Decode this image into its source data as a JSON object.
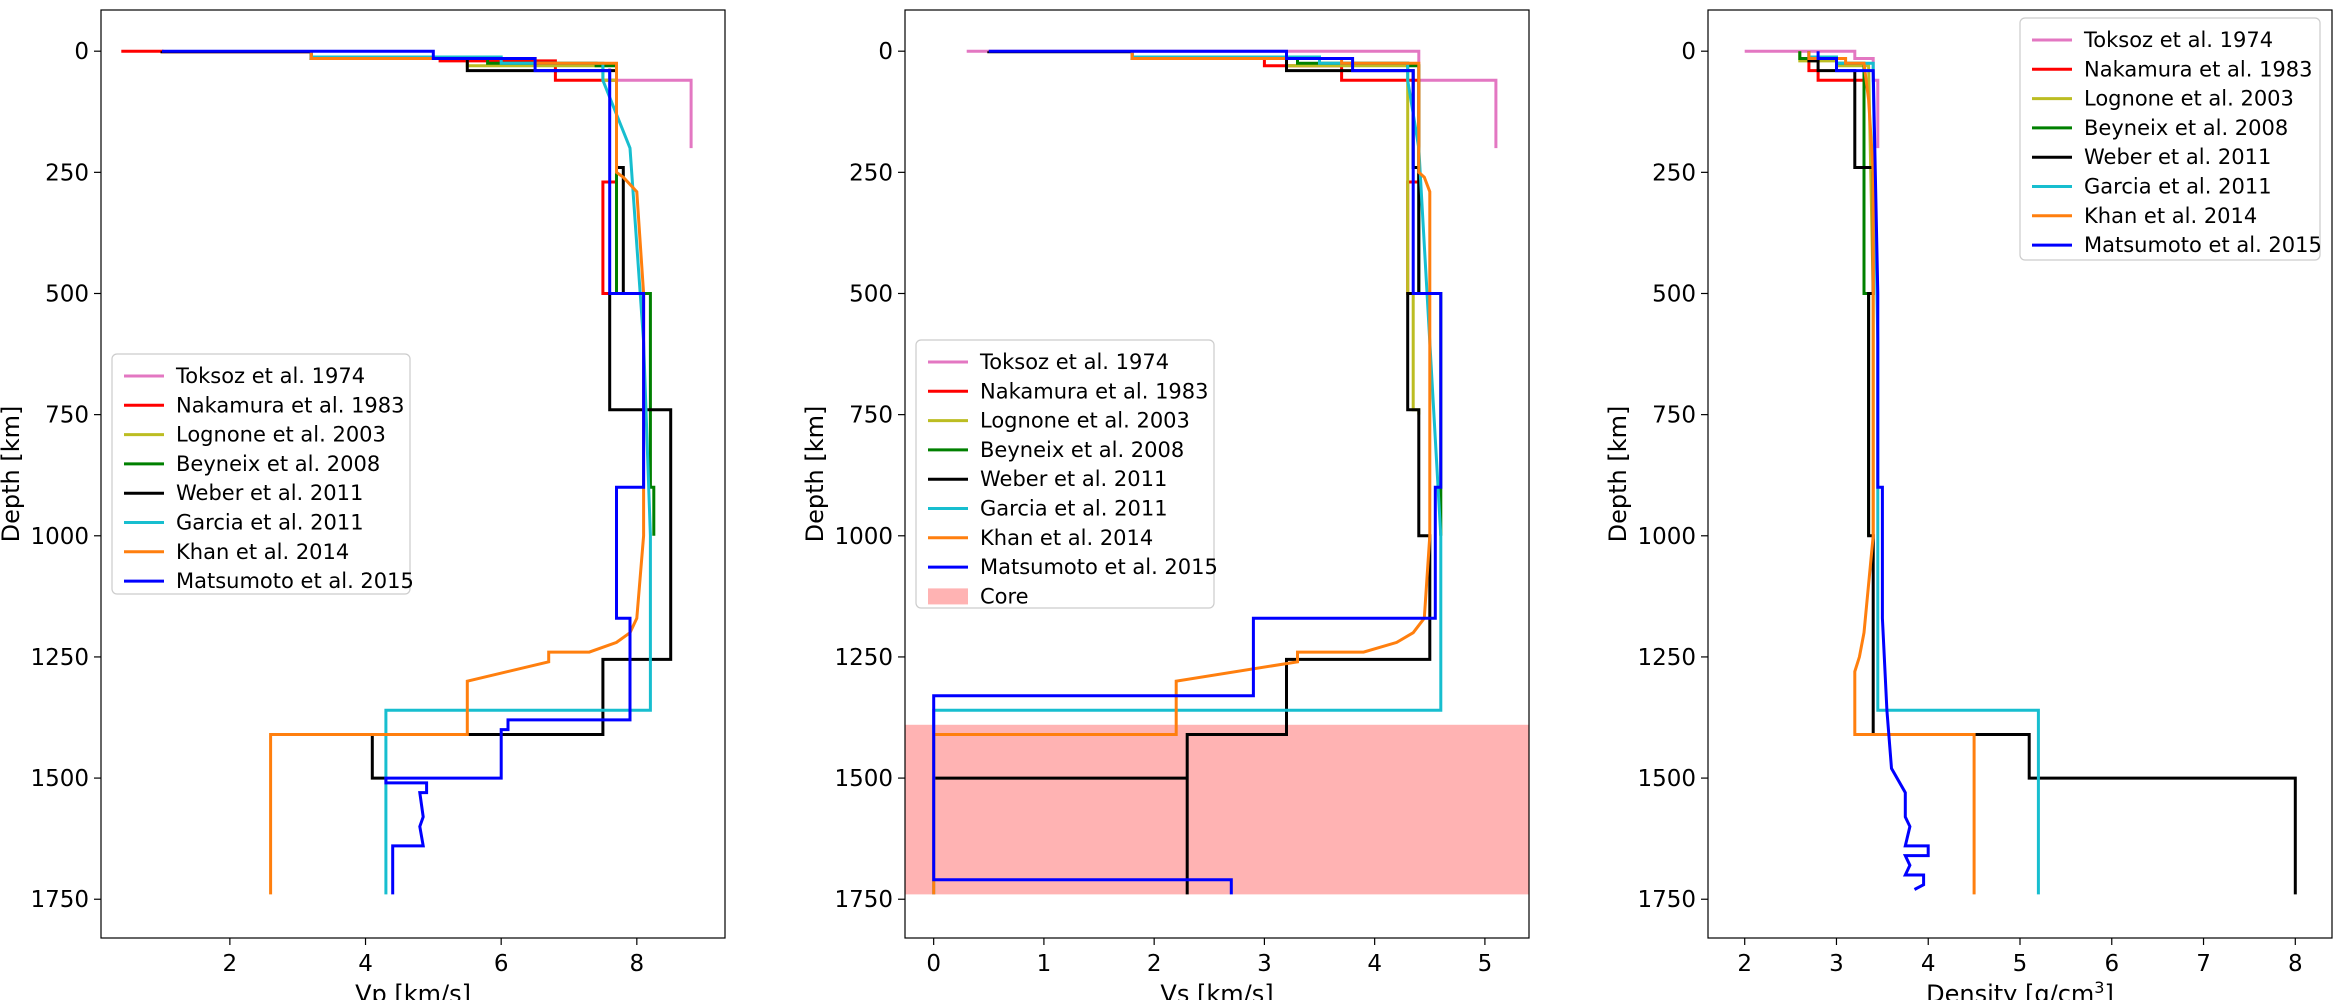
{
  "chart_data": [
    {
      "type": "line",
      "xlabel": "Vp [km/s]",
      "ylabel": "Depth [km]",
      "xlim": [
        0.1,
        9.3
      ],
      "ylim": [
        1830,
        -85
      ],
      "xticks": [
        2,
        4,
        6,
        8
      ],
      "yticks": [
        0,
        250,
        500,
        750,
        1000,
        1250,
        1500,
        1750
      ],
      "legend_position": "center-left",
      "series": [
        {
          "name": "Toksoz et al. 1974",
          "color": "#e377c2",
          "x": [
            7.6,
            7.6,
            8.8,
            8.8
          ],
          "y": [
            35,
            60,
            60,
            200
          ]
        },
        {
          "name": "Nakamura et al. 1983",
          "color": "#ff0000",
          "x": [
            0.4,
            1.0,
            1.0,
            3.2,
            3.2,
            5.1,
            5.1,
            6.8,
            6.8,
            7.7,
            7.7,
            7.5,
            7.5,
            7.7,
            7.7
          ],
          "y": [
            0,
            0,
            1,
            1,
            15,
            15,
            20,
            20,
            60,
            60,
            270,
            270,
            500,
            500,
            500
          ]
        },
        {
          "name": "Lognone et al. 2003",
          "color": "#bcbd22",
          "x": [
            3.2,
            3.2,
            5.5,
            5.5,
            7.5,
            7.5,
            7.7,
            7.7,
            7.8
          ],
          "y": [
            0,
            15,
            15,
            30,
            30,
            60,
            60,
            500,
            500
          ]
        },
        {
          "name": "Beyneix et al. 2008",
          "color": "#008000",
          "x": [
            3.2,
            3.2,
            5.8,
            5.8,
            7.4,
            7.4,
            7.7,
            7.7,
            8.2,
            8.2,
            8.25,
            8.25
          ],
          "y": [
            0,
            15,
            15,
            25,
            25,
            30,
            30,
            500,
            500,
            900,
            900,
            1000
          ]
        },
        {
          "name": "Weber et al. 2011",
          "color": "#000000",
          "x": [
            1.0,
            1.0,
            3.2,
            3.2,
            5.5,
            5.5,
            7.7,
            7.7,
            7.8,
            7.8,
            7.6,
            7.6,
            8.5,
            8.5,
            7.5,
            7.5,
            4.1,
            4.1,
            4.3
          ],
          "y": [
            0,
            1,
            1,
            15,
            15,
            40,
            40,
            240,
            240,
            500,
            500,
            740,
            740,
            1255,
            1255,
            1410,
            1410,
            1500,
            1500
          ]
        },
        {
          "name": "Garcia et al. 2011",
          "color": "#17becf",
          "x": [
            3.2,
            3.2,
            6.0,
            6.0,
            7.5,
            7.5,
            7.9,
            8.1,
            8.2,
            8.2,
            4.3,
            4.3
          ],
          "y": [
            0,
            12,
            12,
            25,
            25,
            60,
            200,
            600,
            1000,
            1360,
            1360,
            1740
          ]
        },
        {
          "name": "Khan et al. 2014",
          "color": "#ff7f0e",
          "x": [
            3.2,
            3.2,
            6.5,
            6.5,
            7.7,
            7.7,
            7.8,
            8.0,
            8.1,
            8.1,
            8.0,
            7.9,
            7.7,
            7.3,
            6.7,
            6.7,
            5.5,
            5.5,
            2.6,
            2.6
          ],
          "y": [
            0,
            15,
            15,
            25,
            25,
            250,
            260,
            290,
            500,
            1000,
            1170,
            1200,
            1220,
            1240,
            1240,
            1260,
            1300,
            1410,
            1410,
            1740
          ]
        },
        {
          "name": "Matsumoto et al. 2015",
          "color": "#0000ff",
          "x": [
            1.0,
            5.0,
            5.0,
            6.5,
            6.5,
            7.6,
            7.6,
            8.1,
            8.1,
            7.7,
            7.7,
            7.9,
            7.9,
            6.1,
            6.1,
            6.0,
            6.0,
            4.3,
            4.3,
            4.9,
            4.9,
            4.8,
            4.85,
            4.8,
            4.85,
            4.4,
            4.4,
            4.4
          ],
          "y": [
            0,
            0,
            15,
            15,
            40,
            40,
            500,
            500,
            900,
            900,
            1170,
            1170,
            1380,
            1380,
            1400,
            1400,
            1500,
            1500,
            1510,
            1510,
            1530,
            1530,
            1580,
            1600,
            1640,
            1640,
            1740,
            1740
          ]
        }
      ]
    },
    {
      "type": "line",
      "xlabel": "Vs [km/s]",
      "ylabel": "Depth [km]",
      "xlim": [
        -0.26,
        5.4
      ],
      "ylim": [
        1830,
        -85
      ],
      "xticks": [
        0,
        1,
        2,
        3,
        4,
        5
      ],
      "yticks": [
        0,
        250,
        500,
        750,
        1000,
        1250,
        1500,
        1750
      ],
      "legend_position": "center-left",
      "shaded_regions": [
        {
          "name": "Core",
          "color": "#ff8080",
          "y": [
            1390,
            1740
          ]
        }
      ],
      "series": [
        {
          "name": "Toksoz et al. 1974",
          "color": "#e377c2",
          "x": [
            0.3,
            0.5,
            0.5,
            4.4,
            4.4,
            5.1,
            5.1
          ],
          "y": [
            0,
            0,
            0,
            0,
            60,
            60,
            200
          ]
        },
        {
          "name": "Nakamura et al. 1983",
          "color": "#ff0000",
          "x": [
            1.8,
            1.8,
            3.0,
            3.0,
            3.7,
            3.7,
            4.4,
            4.4,
            4.3,
            4.3,
            4.4,
            4.4,
            4.5,
            4.5
          ],
          "y": [
            0,
            15,
            15,
            30,
            30,
            60,
            60,
            270,
            270,
            500,
            500,
            500,
            500,
            500
          ]
        },
        {
          "name": "Lognone et al. 2003",
          "color": "#bcbd22",
          "x": [
            1.8,
            1.8,
            3.2,
            3.2,
            4.3,
            4.3,
            4.35,
            4.35,
            4.4,
            4.4
          ],
          "y": [
            0,
            15,
            15,
            30,
            30,
            500,
            500,
            740,
            740,
            750
          ]
        },
        {
          "name": "Beyneix et al. 2008",
          "color": "#008000",
          "x": [
            1.8,
            1.8,
            3.3,
            3.3,
            4.3,
            4.3,
            4.4,
            4.4,
            4.6,
            4.6
          ],
          "y": [
            0,
            15,
            15,
            25,
            25,
            30,
            30,
            500,
            500,
            1000
          ]
        },
        {
          "name": "Weber et al. 2011",
          "color": "#000000",
          "x": [
            0.5,
            0.5,
            1.8,
            1.8,
            3.2,
            3.2,
            4.35,
            4.35,
            4.4,
            4.4,
            4.3,
            4.3,
            4.4,
            4.4,
            4.5,
            4.5,
            3.2,
            3.2,
            2.3,
            2.3,
            0,
            0,
            2.3,
            2.3
          ],
          "y": [
            0,
            1,
            1,
            15,
            15,
            40,
            40,
            240,
            240,
            500,
            500,
            740,
            740,
            1000,
            1000,
            1255,
            1255,
            1410,
            1410,
            1500,
            1500,
            1500,
            1500,
            1740
          ]
        },
        {
          "name": "Garcia et al. 2011",
          "color": "#17becf",
          "x": [
            1.8,
            1.8,
            3.5,
            3.5,
            4.3,
            4.3,
            4.4,
            4.5,
            4.6,
            4.6,
            0,
            0
          ],
          "y": [
            0,
            12,
            12,
            25,
            25,
            60,
            200,
            600,
            1000,
            1360,
            1360,
            1740
          ]
        },
        {
          "name": "Khan et al. 2014",
          "color": "#ff7f0e",
          "x": [
            1.8,
            1.8,
            3.7,
            3.7,
            4.4,
            4.4,
            4.45,
            4.5,
            4.5,
            4.45,
            4.35,
            4.2,
            3.9,
            3.3,
            3.3,
            2.2,
            2.2,
            0,
            0
          ],
          "y": [
            0,
            15,
            15,
            25,
            25,
            250,
            260,
            290,
            1000,
            1170,
            1200,
            1220,
            1240,
            1240,
            1260,
            1300,
            1410,
            1410,
            1740
          ]
        },
        {
          "name": "Matsumoto et al. 2015",
          "color": "#0000ff",
          "x": [
            0.5,
            3.2,
            3.2,
            3.8,
            3.8,
            4.35,
            4.35,
            4.6,
            4.6,
            4.55,
            4.55,
            2.9,
            2.9,
            0,
            0,
            0,
            0,
            2.7,
            2.7
          ],
          "y": [
            0,
            0,
            15,
            15,
            40,
            40,
            500,
            500,
            900,
            900,
            1170,
            1170,
            1330,
            1330,
            1500,
            1700,
            1710,
            1710,
            1740
          ]
        }
      ]
    },
    {
      "type": "line",
      "xlabel": "Density [g/cm",
      "xlabel_superscript": "3",
      "xlabel_suffix": "]",
      "ylabel": "Depth [km]",
      "xlim": [
        1.6,
        8.4
      ],
      "ylim": [
        1830,
        -85
      ],
      "xticks": [
        2,
        3,
        4,
        5,
        6,
        7,
        8
      ],
      "yticks": [
        0,
        250,
        500,
        750,
        1000,
        1250,
        1500,
        1750
      ],
      "legend_position": "top-right",
      "series": [
        {
          "name": "Toksoz et al. 1974",
          "color": "#e377c2",
          "x": [
            2.0,
            3.2,
            3.2,
            3.4,
            3.4,
            3.45,
            3.45
          ],
          "y": [
            0,
            0,
            15,
            15,
            60,
            60,
            200
          ]
        },
        {
          "name": "Nakamura et al. 1983",
          "color": "#ff0000",
          "x": [
            2.7,
            2.7,
            2.8,
            2.8,
            3.3,
            3.3,
            3.3
          ],
          "y": [
            15,
            40,
            40,
            60,
            60,
            100,
            100
          ]
        },
        {
          "name": "Lognone et al. 2003",
          "color": "#bcbd22",
          "x": [
            2.6,
            2.6,
            3.0,
            3.0,
            3.35,
            3.4,
            3.4
          ],
          "y": [
            0,
            20,
            20,
            30,
            30,
            500,
            1050
          ]
        },
        {
          "name": "Beyneix et al. 2008",
          "color": "#008000",
          "x": [
            2.6,
            2.6,
            3.0,
            3.0,
            3.3,
            3.3,
            3.35,
            3.35
          ],
          "y": [
            0,
            15,
            15,
            25,
            25,
            500,
            500,
            1000
          ]
        },
        {
          "name": "Weber et al. 2011",
          "color": "#000000",
          "x": [
            2.7,
            2.7,
            2.8,
            2.8,
            3.2,
            3.2,
            3.4,
            3.4,
            3.35,
            3.35,
            3.4,
            3.4,
            5.1,
            5.1,
            8.0,
            8.0
          ],
          "y": [
            0,
            20,
            20,
            40,
            40,
            240,
            240,
            500,
            500,
            1000,
            1000,
            1410,
            1410,
            1500,
            1500,
            1740
          ]
        },
        {
          "name": "Garcia et al. 2011",
          "color": "#17becf",
          "x": [
            2.7,
            2.7,
            3.0,
            3.0,
            3.4,
            3.4,
            3.45,
            3.45,
            5.2,
            5.2
          ],
          "y": [
            0,
            12,
            12,
            25,
            25,
            60,
            600,
            1360,
            1360,
            1740
          ]
        },
        {
          "name": "Khan et al. 2014",
          "color": "#ff7f0e",
          "x": [
            2.7,
            2.7,
            3.1,
            3.1,
            3.3,
            3.35,
            3.4,
            3.4,
            3.3,
            3.25,
            3.2,
            3.2,
            4.5,
            4.5
          ],
          "y": [
            0,
            15,
            15,
            25,
            25,
            100,
            250,
            1000,
            1200,
            1250,
            1280,
            1410,
            1410,
            1740
          ]
        },
        {
          "name": "Matsumoto et al. 2015",
          "color": "#0000ff",
          "x": [
            2.8,
            2.8,
            3.0,
            3.0,
            3.4,
            3.45,
            3.45,
            3.5,
            3.5,
            3.55,
            3.6,
            3.75,
            3.75,
            3.8,
            3.75,
            4.0,
            4.0,
            3.75,
            3.8,
            3.75,
            3.95,
            3.95,
            3.85
          ],
          "y": [
            0,
            15,
            15,
            40,
            40,
            500,
            900,
            900,
            1170,
            1360,
            1480,
            1530,
            1580,
            1600,
            1640,
            1640,
            1660,
            1660,
            1680,
            1700,
            1700,
            1720,
            1730
          ]
        }
      ]
    }
  ]
}
